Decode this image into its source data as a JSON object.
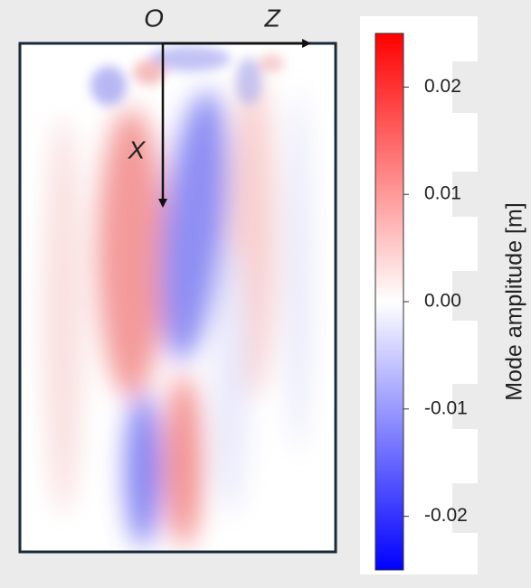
{
  "chart_data": {
    "type": "field",
    "annotations": {
      "origin": "O",
      "z_axis": "Z",
      "x_axis": "X"
    },
    "colorbar_label": "Mode amplitude [m]",
    "colormap": [
      "#0000ff",
      "#ffffff",
      "#ff0000"
    ],
    "clim": [
      -0.025,
      0.025
    ],
    "cticks": [
      0.02,
      0.01,
      {
        "value": 0,
        "label": "0.00"
      },
      -0.01,
      -0.02
    ]
  }
}
